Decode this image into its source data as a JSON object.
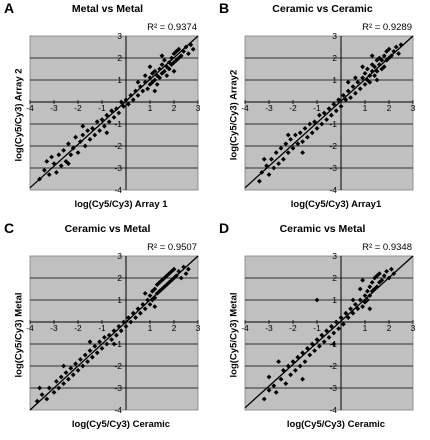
{
  "chart_data": [
    {
      "type": "scatter",
      "letter": "A",
      "title": "Metal vs Metal",
      "r2_label": "R² = 0.9374",
      "xlabel": "log(Cy5/Cy3) Array 1",
      "ylabel": "log(Cy5/Cy3) Array 2",
      "xlim": [
        -4,
        3
      ],
      "ylim": [
        -4,
        3
      ],
      "xticks": [
        "-4",
        "-3",
        "-2",
        "-1",
        "0",
        "1",
        "2",
        "3"
      ],
      "yticks": [
        "-4",
        "-3",
        "-2",
        "-1",
        "0",
        "1",
        "2",
        "3"
      ],
      "trendline": {
        "x": [
          -4,
          3
        ],
        "y": [
          -3.9,
          3.0
        ]
      },
      "points": [
        [
          -3.6,
          -3.5
        ],
        [
          -3.4,
          -3.1
        ],
        [
          -3.2,
          -3.3
        ],
        [
          -3.0,
          -2.8
        ],
        [
          -3.1,
          -2.5
        ],
        [
          -2.9,
          -3.2
        ],
        [
          -2.8,
          -2.4
        ],
        [
          -2.7,
          -2.9
        ],
        [
          -2.6,
          -2.2
        ],
        [
          -2.5,
          -2.7
        ],
        [
          -2.4,
          -1.9
        ],
        [
          -2.3,
          -2.4
        ],
        [
          -2.2,
          -2.1
        ],
        [
          -2.1,
          -1.6
        ],
        [
          -2.0,
          -2.3
        ],
        [
          -1.9,
          -1.8
        ],
        [
          -1.8,
          -1.5
        ],
        [
          -1.7,
          -2.0
        ],
        [
          -1.6,
          -1.3
        ],
        [
          -1.5,
          -1.7
        ],
        [
          -1.4,
          -1.2
        ],
        [
          -1.3,
          -1.5
        ],
        [
          -1.2,
          -0.9
        ],
        [
          -1.1,
          -1.3
        ],
        [
          -1.0,
          -0.8
        ],
        [
          -0.9,
          -1.1
        ],
        [
          -0.8,
          -0.6
        ],
        [
          -0.7,
          -0.9
        ],
        [
          -0.6,
          -0.4
        ],
        [
          -0.5,
          -0.7
        ],
        [
          -0.4,
          -0.3
        ],
        [
          -0.3,
          -0.5
        ],
        [
          -0.2,
          0.0
        ],
        [
          -0.1,
          -0.2
        ],
        [
          0.0,
          0.1
        ],
        [
          0.1,
          -0.1
        ],
        [
          0.2,
          0.3
        ],
        [
          0.3,
          0.1
        ],
        [
          0.4,
          0.5
        ],
        [
          0.5,
          0.3
        ],
        [
          0.6,
          0.7
        ],
        [
          0.7,
          0.5
        ],
        [
          0.8,
          0.9
        ],
        [
          0.9,
          0.6
        ],
        [
          1.0,
          1.1
        ],
        [
          1.0,
          0.8
        ],
        [
          1.1,
          1.3
        ],
        [
          1.1,
          0.9
        ],
        [
          1.2,
          1.0
        ],
        [
          1.2,
          1.4
        ],
        [
          1.3,
          1.2
        ],
        [
          1.3,
          0.8
        ],
        [
          1.4,
          1.5
        ],
        [
          1.4,
          1.1
        ],
        [
          1.5,
          1.3
        ],
        [
          1.5,
          1.7
        ],
        [
          1.6,
          1.4
        ],
        [
          1.6,
          1.9
        ],
        [
          1.7,
          1.6
        ],
        [
          1.7,
          1.2
        ],
        [
          1.8,
          1.8
        ],
        [
          1.8,
          1.5
        ],
        [
          1.9,
          2.0
        ],
        [
          1.9,
          1.7
        ],
        [
          2.0,
          1.8
        ],
        [
          2.0,
          2.2
        ],
        [
          2.1,
          1.9
        ],
        [
          2.1,
          2.3
        ],
        [
          2.2,
          2.0
        ],
        [
          2.2,
          2.4
        ],
        [
          2.3,
          2.1
        ],
        [
          2.4,
          2.3
        ],
        [
          2.5,
          2.5
        ],
        [
          2.6,
          2.2
        ],
        [
          2.7,
          2.6
        ],
        [
          2.8,
          2.4
        ],
        [
          1.0,
          1.6
        ],
        [
          0.8,
          1.2
        ],
        [
          1.5,
          2.1
        ],
        [
          0.5,
          0.9
        ],
        [
          -1.8,
          -1.1
        ],
        [
          -2.4,
          -2.8
        ],
        [
          -3.3,
          -2.7
        ],
        [
          1.2,
          0.5
        ],
        [
          2.0,
          1.4
        ],
        [
          -0.8,
          -1.4
        ]
      ]
    },
    {
      "type": "scatter",
      "letter": "B",
      "title": "Ceramic vs Ceramic",
      "r2_label": "R² = 0.9289",
      "xlabel": "log(Cy5/Cy3) Array1",
      "ylabel": "log(Cy5/Cy3) Array2",
      "xlim": [
        -4,
        3
      ],
      "ylim": [
        -4,
        3
      ],
      "xticks": [
        "-4",
        "-3",
        "-2",
        "-1",
        "0",
        "1",
        "2",
        "3"
      ],
      "yticks": [
        "-4",
        "-3",
        "-2",
        "-1",
        "0",
        "1",
        "2",
        "3"
      ],
      "trendline": {
        "x": [
          -4,
          3
        ],
        "y": [
          -3.9,
          3.0
        ]
      },
      "points": [
        [
          -3.4,
          -3.6
        ],
        [
          -3.3,
          -3.2
        ],
        [
          -3.1,
          -2.9
        ],
        [
          -3.0,
          -3.3
        ],
        [
          -2.9,
          -2.6
        ],
        [
          -2.8,
          -3.0
        ],
        [
          -2.7,
          -2.3
        ],
        [
          -2.6,
          -2.8
        ],
        [
          -2.5,
          -2.1
        ],
        [
          -2.4,
          -2.6
        ],
        [
          -2.3,
          -1.9
        ],
        [
          -2.2,
          -2.3
        ],
        [
          -2.1,
          -1.7
        ],
        [
          -2.0,
          -2.1
        ],
        [
          -1.9,
          -1.5
        ],
        [
          -1.8,
          -1.9
        ],
        [
          -1.7,
          -1.4
        ],
        [
          -1.6,
          -1.8
        ],
        [
          -1.5,
          -1.2
        ],
        [
          -1.4,
          -1.6
        ],
        [
          -1.3,
          -1.0
        ],
        [
          -1.2,
          -1.4
        ],
        [
          -1.1,
          -0.9
        ],
        [
          -1.0,
          -1.2
        ],
        [
          -0.9,
          -0.6
        ],
        [
          -0.8,
          -1.0
        ],
        [
          -0.7,
          -0.5
        ],
        [
          -0.6,
          -0.8
        ],
        [
          -0.5,
          -0.3
        ],
        [
          -0.4,
          -0.6
        ],
        [
          -0.3,
          -0.1
        ],
        [
          -0.2,
          -0.4
        ],
        [
          -0.1,
          0.1
        ],
        [
          0.0,
          -0.2
        ],
        [
          0.1,
          0.3
        ],
        [
          0.2,
          0.1
        ],
        [
          0.3,
          0.5
        ],
        [
          0.4,
          0.2
        ],
        [
          0.5,
          0.7
        ],
        [
          0.6,
          0.4
        ],
        [
          0.7,
          0.9
        ],
        [
          0.8,
          0.6
        ],
        [
          0.9,
          1.1
        ],
        [
          1.0,
          0.8
        ],
        [
          1.0,
          1.3
        ],
        [
          1.1,
          1.0
        ],
        [
          1.1,
          1.5
        ],
        [
          1.2,
          1.2
        ],
        [
          1.2,
          0.9
        ],
        [
          1.3,
          1.4
        ],
        [
          1.3,
          1.7
        ],
        [
          1.4,
          1.2
        ],
        [
          1.4,
          1.6
        ],
        [
          1.5,
          1.9
        ],
        [
          1.5,
          1.4
        ],
        [
          1.6,
          1.7
        ],
        [
          1.6,
          2.0
        ],
        [
          1.7,
          1.5
        ],
        [
          1.7,
          1.9
        ],
        [
          1.8,
          2.1
        ],
        [
          1.8,
          1.6
        ],
        [
          1.9,
          1.9
        ],
        [
          1.9,
          2.3
        ],
        [
          2.0,
          2.0
        ],
        [
          2.0,
          2.4
        ],
        [
          2.1,
          2.1
        ],
        [
          2.2,
          2.3
        ],
        [
          2.3,
          2.5
        ],
        [
          2.4,
          2.2
        ],
        [
          2.5,
          2.6
        ],
        [
          0.9,
          1.6
        ],
        [
          0.6,
          1.1
        ],
        [
          1.3,
          2.1
        ],
        [
          -1.6,
          -2.3
        ],
        [
          -2.2,
          -1.5
        ],
        [
          -3.2,
          -2.6
        ],
        [
          1.5,
          1.0
        ],
        [
          0.3,
          0.9
        ]
      ]
    },
    {
      "type": "scatter",
      "letter": "C",
      "title": "Ceramic vs Metal",
      "r2_label": "R² = 0.9507",
      "xlabel": "log(Cy5/Cy3) Ceramic",
      "ylabel": "log(Cy5/Cy3) Metal",
      "xlim": [
        -4,
        3
      ],
      "ylim": [
        -4,
        3
      ],
      "xticks": [
        "-4",
        "-3",
        "-2",
        "-1",
        "0",
        "1",
        "2",
        "3"
      ],
      "yticks": [
        "-4",
        "-3",
        "-2",
        "-1",
        "0",
        "1",
        "2",
        "3"
      ],
      "trendline": {
        "x": [
          -4,
          3
        ],
        "y": [
          -4.0,
          3.0
        ]
      },
      "points": [
        [
          -3.7,
          -3.6
        ],
        [
          -3.5,
          -3.3
        ],
        [
          -3.3,
          -3.5
        ],
        [
          -3.2,
          -3.0
        ],
        [
          -3.0,
          -3.2
        ],
        [
          -2.9,
          -2.7
        ],
        [
          -2.8,
          -3.0
        ],
        [
          -2.7,
          -2.5
        ],
        [
          -2.6,
          -2.8
        ],
        [
          -2.5,
          -2.3
        ],
        [
          -2.4,
          -2.6
        ],
        [
          -2.3,
          -2.1
        ],
        [
          -2.2,
          -2.4
        ],
        [
          -2.1,
          -1.9
        ],
        [
          -2.0,
          -2.2
        ],
        [
          -1.9,
          -1.7
        ],
        [
          -1.8,
          -2.0
        ],
        [
          -1.7,
          -1.5
        ],
        [
          -1.6,
          -1.8
        ],
        [
          -1.5,
          -1.3
        ],
        [
          -1.4,
          -1.6
        ],
        [
          -1.3,
          -1.1
        ],
        [
          -1.2,
          -1.4
        ],
        [
          -1.1,
          -0.9
        ],
        [
          -1.0,
          -1.2
        ],
        [
          -0.9,
          -0.7
        ],
        [
          -0.8,
          -1.0
        ],
        [
          -0.7,
          -0.6
        ],
        [
          -0.6,
          -0.8
        ],
        [
          -0.5,
          -0.4
        ],
        [
          -0.4,
          -0.6
        ],
        [
          -0.3,
          -0.2
        ],
        [
          -0.2,
          -0.4
        ],
        [
          -0.1,
          0.0
        ],
        [
          0.0,
          -0.2
        ],
        [
          0.1,
          0.2
        ],
        [
          0.2,
          0.0
        ],
        [
          0.3,
          0.4
        ],
        [
          0.4,
          0.2
        ],
        [
          0.5,
          0.6
        ],
        [
          0.6,
          0.4
        ],
        [
          0.7,
          0.8
        ],
        [
          0.8,
          0.6
        ],
        [
          0.9,
          1.0
        ],
        [
          1.0,
          0.8
        ],
        [
          1.0,
          1.2
        ],
        [
          1.1,
          1.0
        ],
        [
          1.1,
          1.4
        ],
        [
          1.2,
          1.1
        ],
        [
          1.2,
          1.5
        ],
        [
          1.3,
          1.3
        ],
        [
          1.3,
          1.7
        ],
        [
          1.4,
          1.4
        ],
        [
          1.4,
          1.8
        ],
        [
          1.5,
          1.5
        ],
        [
          1.5,
          1.9
        ],
        [
          1.6,
          1.6
        ],
        [
          1.6,
          2.0
        ],
        [
          1.7,
          1.7
        ],
        [
          1.7,
          2.1
        ],
        [
          1.8,
          1.8
        ],
        [
          1.8,
          2.2
        ],
        [
          1.9,
          1.9
        ],
        [
          1.9,
          2.3
        ],
        [
          2.0,
          2.0
        ],
        [
          2.0,
          2.4
        ],
        [
          2.1,
          2.1
        ],
        [
          2.2,
          2.3
        ],
        [
          2.3,
          2.0
        ],
        [
          2.4,
          2.5
        ],
        [
          2.5,
          2.2
        ],
        [
          2.6,
          2.4
        ],
        [
          1.2,
          0.7
        ],
        [
          0.8,
          1.3
        ],
        [
          -1.5,
          -0.9
        ],
        [
          -2.6,
          -2.0
        ],
        [
          -3.6,
          -3.0
        ],
        [
          -0.5,
          -1.0
        ]
      ]
    },
    {
      "type": "scatter",
      "letter": "D",
      "title": "Ceramic vs Metal",
      "r2_label": "R² = 0.9348",
      "xlabel": "log(Cy5/Cy3) Ceramic",
      "ylabel": "log(Cy5/Cy3) Metal",
      "xlim": [
        -4,
        3
      ],
      "ylim": [
        -4,
        3
      ],
      "xticks": [
        "-4",
        "-3",
        "-2",
        "-1",
        "0",
        "1",
        "2",
        "3"
      ],
      "yticks": [
        "-4",
        "-3",
        "-2",
        "-1",
        "0",
        "1",
        "2",
        "3"
      ],
      "trendline": {
        "x": [
          -4,
          3
        ],
        "y": [
          -3.9,
          3.0
        ]
      },
      "points": [
        [
          -3.2,
          -3.5
        ],
        [
          -3.0,
          -3.1
        ],
        [
          -2.8,
          -2.9
        ],
        [
          -2.7,
          -3.2
        ],
        [
          -2.5,
          -2.6
        ],
        [
          -2.4,
          -2.2
        ],
        [
          -2.3,
          -2.8
        ],
        [
          -2.2,
          -2.0
        ],
        [
          -2.1,
          -2.4
        ],
        [
          -2.0,
          -1.8
        ],
        [
          -1.9,
          -2.2
        ],
        [
          -1.8,
          -1.6
        ],
        [
          -1.7,
          -2.0
        ],
        [
          -1.6,
          -1.4
        ],
        [
          -1.5,
          -1.8
        ],
        [
          -1.4,
          -1.2
        ],
        [
          -1.3,
          -1.5
        ],
        [
          -1.2,
          -1.0
        ],
        [
          -1.1,
          -1.3
        ],
        [
          -1.0,
          -0.8
        ],
        [
          -0.9,
          -1.1
        ],
        [
          -0.8,
          -0.6
        ],
        [
          -0.7,
          -0.9
        ],
        [
          -0.6,
          -0.4
        ],
        [
          -0.5,
          -0.7
        ],
        [
          -0.4,
          -0.2
        ],
        [
          -0.3,
          -0.5
        ],
        [
          -0.2,
          0.0
        ],
        [
          -0.1,
          -0.3
        ],
        [
          0.0,
          0.2
        ],
        [
          0.1,
          -0.1
        ],
        [
          0.2,
          0.4
        ],
        [
          0.3,
          0.2
        ],
        [
          0.4,
          0.6
        ],
        [
          0.5,
          0.4
        ],
        [
          0.6,
          0.8
        ],
        [
          0.7,
          0.6
        ],
        [
          0.8,
          1.0
        ],
        [
          0.9,
          0.7
        ],
        [
          1.0,
          1.2
        ],
        [
          1.0,
          0.9
        ],
        [
          1.1,
          1.4
        ],
        [
          1.1,
          1.0
        ],
        [
          1.2,
          1.6
        ],
        [
          1.2,
          1.2
        ],
        [
          1.3,
          1.4
        ],
        [
          1.3,
          1.8
        ],
        [
          1.4,
          1.5
        ],
        [
          1.4,
          2.0
        ],
        [
          1.5,
          1.6
        ],
        [
          1.5,
          2.1
        ],
        [
          1.6,
          1.8
        ],
        [
          1.6,
          2.2
        ],
        [
          1.7,
          1.9
        ],
        [
          1.8,
          2.1
        ],
        [
          1.9,
          2.3
        ],
        [
          2.0,
          2.0
        ],
        [
          2.1,
          2.4
        ],
        [
          2.2,
          2.2
        ],
        [
          0.8,
          1.5
        ],
        [
          0.5,
          1.0
        ],
        [
          -1.0,
          1.0
        ],
        [
          -1.6,
          -2.6
        ],
        [
          -2.6,
          -1.8
        ],
        [
          1.2,
          0.6
        ],
        [
          0.9,
          1.9
        ],
        [
          -0.3,
          -1.0
        ],
        [
          -3.0,
          -2.5
        ]
      ]
    }
  ]
}
